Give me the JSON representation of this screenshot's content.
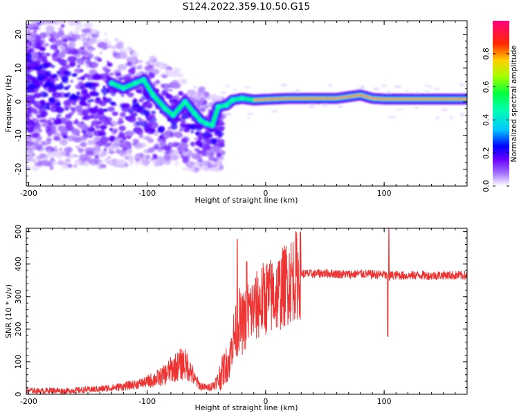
{
  "chart_data": [
    {
      "type": "heatmap",
      "title": "S124.2022.359.10.50.G15",
      "xlabel": "Height of straight line (km)",
      "ylabel": "Frequency (Hz)",
      "xlim": [
        -202,
        170
      ],
      "ylim": [
        -25,
        24
      ],
      "xticks": [
        -200,
        -100,
        0,
        100
      ],
      "xticks_labels": [
        "-200",
        "-100",
        "0",
        "100"
      ],
      "yticks": [
        -20,
        -10,
        0,
        10,
        20
      ],
      "yticks_labels": [
        "-20",
        "-10",
        "0",
        "10",
        "20"
      ],
      "colorbar": {
        "label": "Normalized spectral amplitude",
        "range": [
          0,
          1
        ],
        "ticks": [
          0,
          0.2,
          0.4,
          0.6,
          0.8
        ],
        "ticks_labels": [
          "0.0",
          "0.2",
          "0.4",
          "0.6",
          "0.8"
        ],
        "colormap": [
          "#ffffff",
          "#6a00ff",
          "#0000ff",
          "#00c8ff",
          "#00ff60",
          "#a0ff00",
          "#ffd000",
          "#ff2a00",
          "#ff0080"
        ]
      },
      "ridge": {
        "description_free": true,
        "points": [
          [
            -130,
            5.5
          ],
          [
            -120,
            4
          ],
          [
            -110,
            5.5
          ],
          [
            -103,
            6.5
          ],
          [
            -95,
            2
          ],
          [
            -85,
            -2
          ],
          [
            -78,
            -4
          ],
          [
            -68,
            0
          ],
          [
            -60,
            -3.5
          ],
          [
            -55,
            -5.5
          ],
          [
            -50,
            -6.5
          ],
          [
            -45,
            -7
          ],
          [
            -40,
            -1.5
          ],
          [
            -33,
            -1
          ],
          [
            -28,
            0.5
          ],
          [
            -20,
            1
          ],
          [
            -10,
            0.5
          ],
          [
            0,
            0.7
          ],
          [
            20,
            1
          ],
          [
            40,
            1
          ],
          [
            60,
            1
          ],
          [
            80,
            2
          ],
          [
            90,
            1
          ],
          [
            100,
            0.8
          ],
          [
            120,
            0.8
          ],
          [
            150,
            0.8
          ],
          [
            170,
            0.8
          ]
        ]
      }
    },
    {
      "type": "line",
      "xlabel": "Height of straight line (km)",
      "ylabel": "SNR (10 * v/v)",
      "xlim": [
        -202,
        170
      ],
      "ylim": [
        0,
        510
      ],
      "xticks": [
        -200,
        -100,
        0,
        100
      ],
      "xticks_labels": [
        "-200",
        "-100",
        "0",
        "100"
      ],
      "yticks": [
        0,
        100,
        200,
        300,
        400,
        500
      ],
      "yticks_labels": [
        "0",
        "100",
        "200",
        "300",
        "400",
        "500"
      ],
      "color": "#ee3333",
      "series": [
        {
          "name": "SNR",
          "x": [
            -202,
            -190,
            -180,
            -170,
            -160,
            -150,
            -140,
            -130,
            -120,
            -110,
            -100,
            -95,
            -90,
            -85,
            -80,
            -75,
            -70,
            -65,
            -60,
            -55,
            -50,
            -45,
            -40,
            -35,
            -30,
            -28,
            -25,
            -22,
            -20,
            -15,
            -10,
            -5,
            0,
            5,
            10,
            15,
            20,
            25,
            30,
            40,
            50,
            60,
            70,
            80,
            90,
            100,
            103,
            104,
            105,
            110,
            120,
            130,
            140,
            150,
            160,
            170
          ],
          "values": [
            12,
            10,
            12,
            10,
            12,
            14,
            16,
            20,
            24,
            30,
            38,
            45,
            50,
            60,
            75,
            85,
            95,
            85,
            45,
            25,
            20,
            25,
            45,
            80,
            110,
            170,
            190,
            230,
            210,
            250,
            260,
            280,
            300,
            300,
            310,
            330,
            350,
            365,
            370,
            370,
            372,
            370,
            368,
            370,
            368,
            368,
            360,
            350,
            365,
            366,
            364,
            366,
            364,
            366,
            365,
            365
          ]
        }
      ],
      "spikes": [
        {
          "x": -24,
          "y": 476
        },
        {
          "x": -16,
          "y": 407
        },
        {
          "x": 104,
          "y": 510
        },
        {
          "x": 103,
          "y": 178
        }
      ]
    }
  ]
}
